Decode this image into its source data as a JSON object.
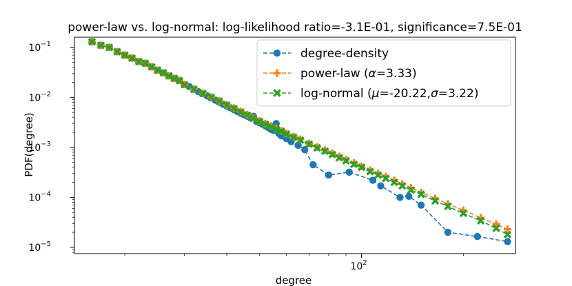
{
  "chart_data": {
    "type": "line",
    "title": "power-law vs. log-normal: log-likelihood ratio=-3.1E-01, significance=7.5E-01",
    "xlabel": "degree",
    "ylabel": "PDF(degree)",
    "xscale": "log",
    "yscale": "log",
    "xlim": [
      14.2,
      285
    ],
    "ylim": [
      7.5e-06,
      0.16
    ],
    "x_ticks": [
      {
        "value": 100,
        "base": "10",
        "exp": "2"
      }
    ],
    "y_ticks": [
      {
        "value": 0.1,
        "base": "10",
        "exp": "−1"
      },
      {
        "value": 0.01,
        "base": "10",
        "exp": "−2"
      },
      {
        "value": 0.001,
        "base": "10",
        "exp": "−3"
      },
      {
        "value": 0.0001,
        "base": "10",
        "exp": "−4"
      },
      {
        "value": 1e-05,
        "base": "10",
        "exp": "−5"
      }
    ],
    "legend_position": "top-right",
    "series": [
      {
        "name": "degree-density",
        "legend_label": "degree-density",
        "color": "#1f77b4",
        "marker": "circle",
        "linestyle": "dashed",
        "x": [
          16,
          17,
          18,
          19,
          20,
          21,
          22,
          23,
          24,
          25,
          26,
          27,
          28,
          29,
          30,
          31,
          32,
          33,
          34,
          35,
          36,
          37,
          38,
          39,
          40,
          41,
          42,
          43,
          44,
          45,
          46,
          47,
          48,
          49,
          50,
          51,
          52,
          53,
          54,
          55,
          56,
          57,
          58,
          60,
          62,
          65,
          68,
          72,
          80,
          92,
          108,
          114,
          130,
          138,
          150,
          180,
          220,
          270
        ],
        "y": [
          0.13,
          0.11,
          0.1,
          0.082,
          0.07,
          0.061,
          0.052,
          0.048,
          0.041,
          0.035,
          0.031,
          0.027,
          0.024,
          0.022,
          0.018,
          0.0165,
          0.0145,
          0.013,
          0.0118,
          0.0108,
          0.0098,
          0.0088,
          0.008,
          0.0073,
          0.0067,
          0.0062,
          0.0057,
          0.0052,
          0.0048,
          0.0045,
          0.0042,
          0.0039,
          0.0042,
          0.0033,
          0.0031,
          0.0029,
          0.0027,
          0.0025,
          0.0023,
          0.0022,
          0.003,
          0.0019,
          0.0017,
          0.0015,
          0.0013,
          0.0011,
          0.0009,
          0.00045,
          0.00028,
          0.00032,
          0.00022,
          0.00017,
          0.0001,
          0.000105,
          7e-05,
          2e-05,
          1.65e-05,
          1.3e-05
        ]
      },
      {
        "name": "power-law",
        "legend_label": "power-law (",
        "legend_math": "α",
        "legend_tail": "=3.33)",
        "color": "#ff7f0e",
        "marker": "plus",
        "linestyle": "dashed",
        "x": [
          16,
          17,
          18,
          19,
          20,
          21,
          22,
          23,
          24,
          25,
          26,
          27,
          28,
          29,
          30,
          32,
          34,
          36,
          38,
          40,
          42,
          44,
          46,
          48,
          50,
          52,
          54,
          56,
          58,
          60,
          63,
          66,
          70,
          74,
          78,
          82,
          86,
          90,
          95,
          100,
          106,
          112,
          118,
          125,
          132,
          140,
          150,
          165,
          180,
          200,
          225,
          250,
          270
        ],
        "y": [
          0.13,
          0.11,
          0.1,
          0.082,
          0.07,
          0.061,
          0.052,
          0.048,
          0.041,
          0.035,
          0.031,
          0.027,
          0.024,
          0.0218,
          0.0182,
          0.0147,
          0.0121,
          0.0101,
          0.0085,
          0.0071,
          0.0061,
          0.0052,
          0.0045,
          0.0039,
          0.0034,
          0.003,
          0.0027,
          0.0024,
          0.00215,
          0.0019,
          0.00165,
          0.00145,
          0.0012,
          0.00102,
          0.00088,
          0.00076,
          0.00066,
          0.00057,
          0.00049,
          0.00042,
          0.00035,
          0.0003,
          0.00026,
          0.00022,
          0.000185,
          0.000155,
          0.000125,
          9.5e-05,
          7.4e-05,
          5.5e-05,
          3.9e-05,
          2.9e-05,
          2.3e-05
        ]
      },
      {
        "name": "log-normal",
        "legend_label": "log-normal (",
        "legend_math": "μ",
        "legend_mid": "=-20.22,",
        "legend_math2": "σ",
        "legend_tail": "=3.22)",
        "color": "#2ca02c",
        "marker": "x",
        "linestyle": "dashed",
        "x": [
          16,
          17,
          18,
          19,
          20,
          21,
          22,
          23,
          24,
          25,
          26,
          27,
          28,
          29,
          30,
          32,
          34,
          36,
          38,
          40,
          42,
          44,
          46,
          48,
          50,
          52,
          54,
          56,
          58,
          60,
          63,
          66,
          70,
          74,
          78,
          82,
          86,
          90,
          95,
          100,
          106,
          112,
          118,
          125,
          132,
          140,
          150,
          165,
          180,
          200,
          225,
          250,
          270
        ],
        "y": [
          0.13,
          0.11,
          0.1,
          0.082,
          0.07,
          0.061,
          0.052,
          0.048,
          0.041,
          0.035,
          0.031,
          0.027,
          0.024,
          0.0216,
          0.018,
          0.0145,
          0.012,
          0.01,
          0.0084,
          0.007,
          0.006,
          0.0051,
          0.0044,
          0.0038,
          0.0033,
          0.0029,
          0.0026,
          0.0023,
          0.0021,
          0.00185,
          0.0016,
          0.0014,
          0.00116,
          0.00098,
          0.00084,
          0.00072,
          0.00062,
          0.00054,
          0.00046,
          0.0004,
          0.00033,
          0.00028,
          0.00024,
          0.0002,
          0.00017,
          0.00014,
          0.000115,
          8.5e-05,
          6.6e-05,
          4.8e-05,
          3.4e-05,
          2.4e-05,
          1.8e-05
        ]
      }
    ]
  }
}
